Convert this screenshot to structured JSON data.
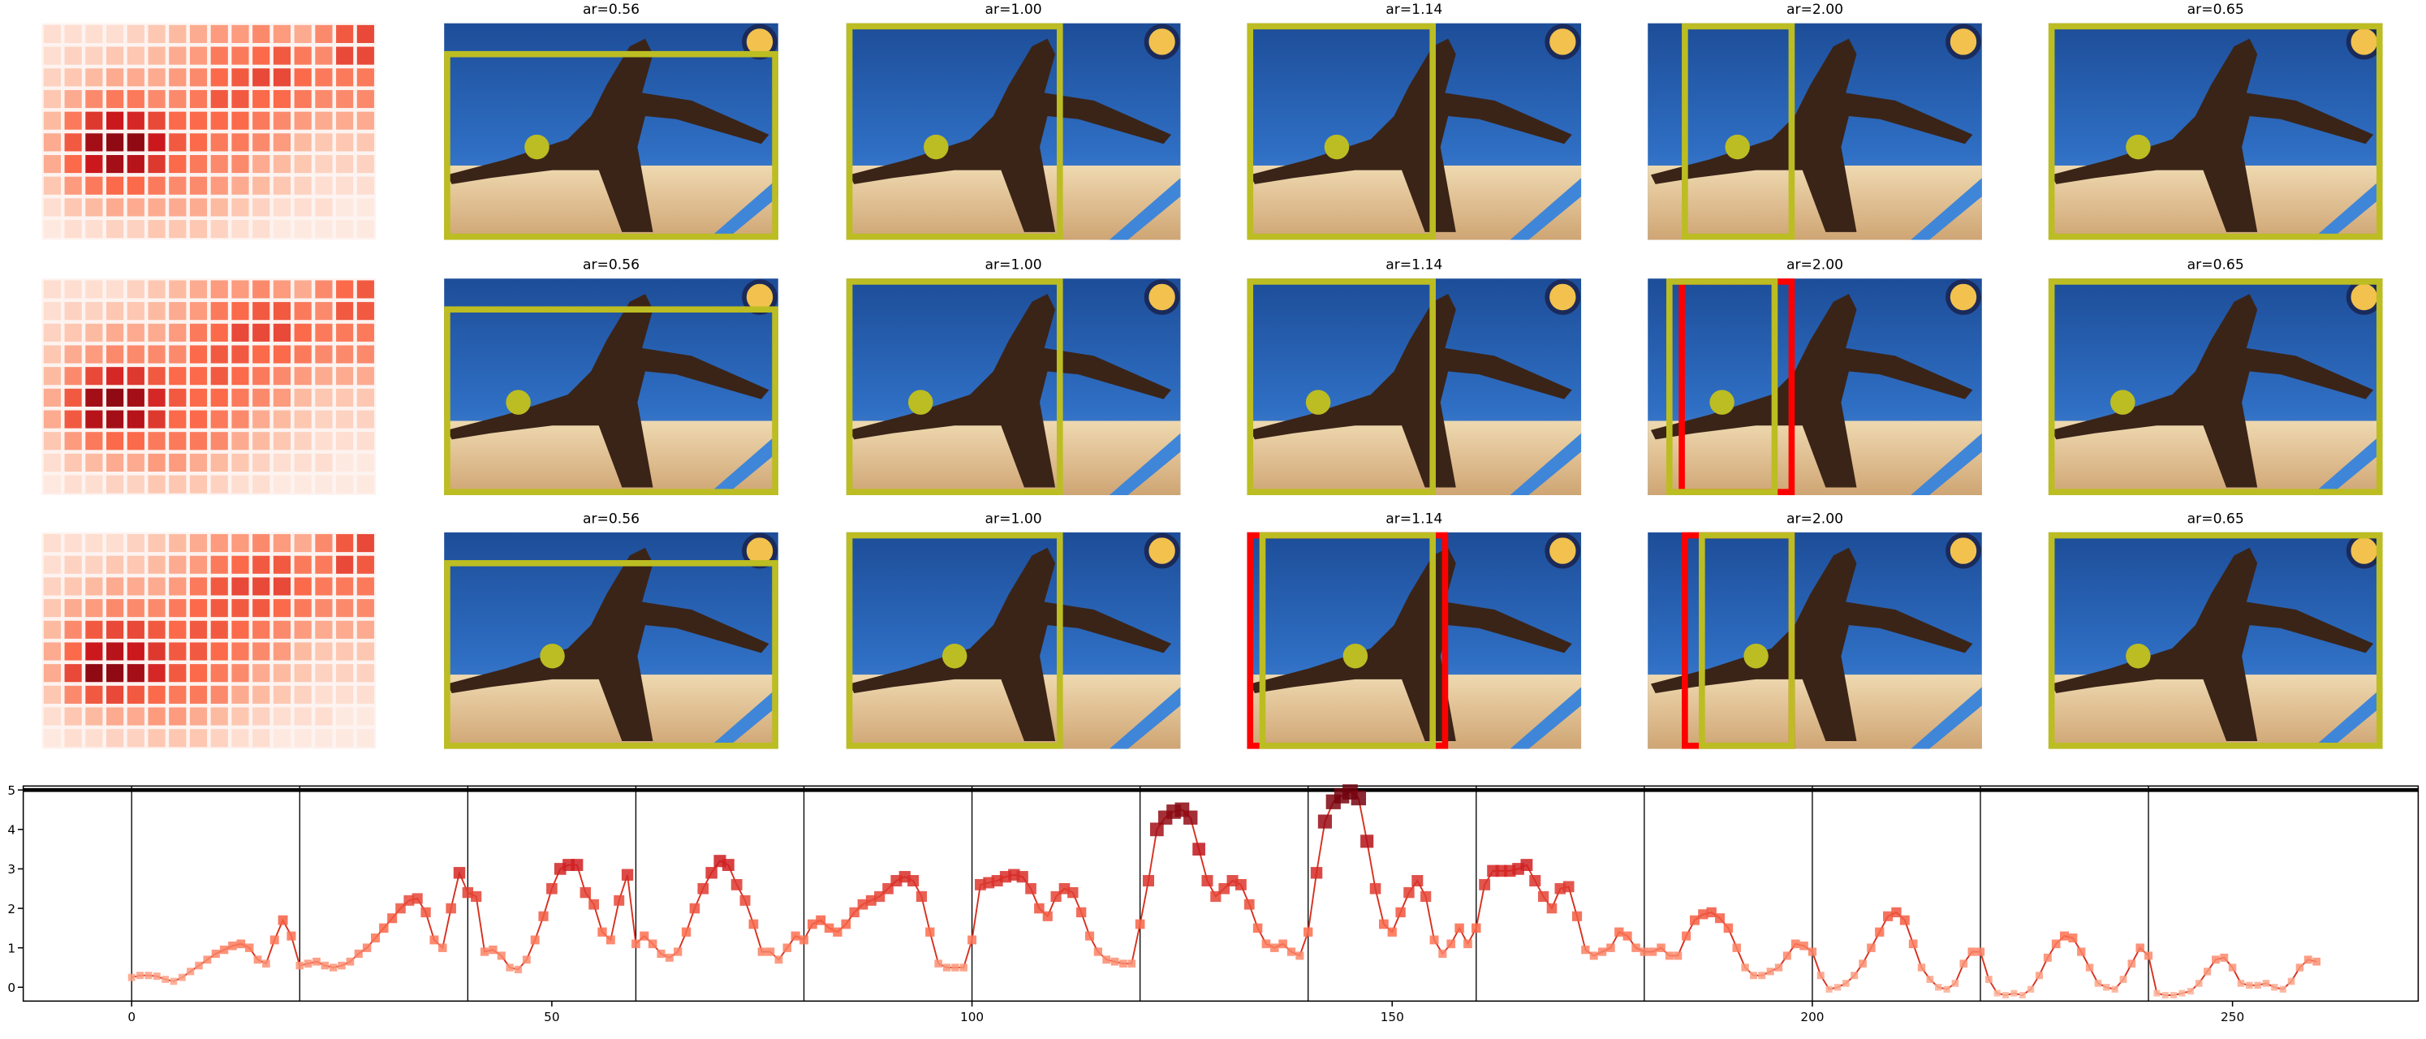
{
  "panel_titles": [
    [
      "ar=0.56",
      "ar=1.00",
      "ar=1.14",
      "ar=2.00",
      "ar=0.65"
    ],
    [
      "ar=0.56",
      "ar=1.00",
      "ar=1.14",
      "ar=2.00",
      "ar=0.65"
    ],
    [
      "ar=0.56",
      "ar=1.00",
      "ar=1.14",
      "ar=2.00",
      "ar=0.65"
    ]
  ],
  "heatmaps": [
    {
      "values": [
        [
          0.1,
          0.1,
          0.1,
          0.1,
          0.15,
          0.2,
          0.25,
          0.3,
          0.35,
          0.35,
          0.4,
          0.35,
          0.3,
          0.4,
          0.55,
          0.6
        ],
        [
          0.1,
          0.15,
          0.15,
          0.2,
          0.2,
          0.25,
          0.3,
          0.35,
          0.45,
          0.45,
          0.5,
          0.55,
          0.45,
          0.4,
          0.6,
          0.6
        ],
        [
          0.15,
          0.2,
          0.25,
          0.3,
          0.3,
          0.3,
          0.35,
          0.4,
          0.5,
          0.55,
          0.6,
          0.6,
          0.5,
          0.45,
          0.45,
          0.45
        ],
        [
          0.2,
          0.3,
          0.4,
          0.45,
          0.45,
          0.4,
          0.4,
          0.45,
          0.55,
          0.55,
          0.5,
          0.5,
          0.45,
          0.4,
          0.4,
          0.4
        ],
        [
          0.25,
          0.45,
          0.65,
          0.75,
          0.7,
          0.6,
          0.5,
          0.5,
          0.5,
          0.5,
          0.45,
          0.4,
          0.35,
          0.3,
          0.3,
          0.3
        ],
        [
          0.3,
          0.55,
          0.85,
          0.9,
          0.9,
          0.75,
          0.55,
          0.5,
          0.45,
          0.45,
          0.4,
          0.35,
          0.25,
          0.2,
          0.2,
          0.2
        ],
        [
          0.3,
          0.5,
          0.75,
          0.85,
          0.8,
          0.65,
          0.5,
          0.45,
          0.4,
          0.4,
          0.3,
          0.25,
          0.2,
          0.15,
          0.15,
          0.15
        ],
        [
          0.2,
          0.35,
          0.45,
          0.5,
          0.5,
          0.45,
          0.4,
          0.4,
          0.35,
          0.3,
          0.25,
          0.2,
          0.15,
          0.1,
          0.1,
          0.1
        ],
        [
          0.1,
          0.2,
          0.25,
          0.3,
          0.3,
          0.3,
          0.3,
          0.3,
          0.25,
          0.2,
          0.15,
          0.1,
          0.1,
          0.1,
          0.05,
          0.05
        ],
        [
          0.05,
          0.1,
          0.1,
          0.15,
          0.15,
          0.2,
          0.2,
          0.2,
          0.15,
          0.1,
          0.1,
          0.05,
          0.05,
          0.05,
          0.05,
          0.05
        ]
      ]
    },
    {
      "values": [
        [
          0.1,
          0.1,
          0.1,
          0.1,
          0.15,
          0.2,
          0.25,
          0.3,
          0.35,
          0.35,
          0.4,
          0.35,
          0.3,
          0.4,
          0.5,
          0.55
        ],
        [
          0.1,
          0.15,
          0.15,
          0.2,
          0.2,
          0.25,
          0.3,
          0.35,
          0.45,
          0.5,
          0.55,
          0.55,
          0.45,
          0.4,
          0.55,
          0.55
        ],
        [
          0.15,
          0.2,
          0.25,
          0.3,
          0.3,
          0.3,
          0.35,
          0.45,
          0.5,
          0.6,
          0.6,
          0.6,
          0.5,
          0.45,
          0.45,
          0.45
        ],
        [
          0.2,
          0.3,
          0.35,
          0.4,
          0.4,
          0.4,
          0.4,
          0.5,
          0.55,
          0.55,
          0.5,
          0.5,
          0.45,
          0.4,
          0.4,
          0.4
        ],
        [
          0.25,
          0.4,
          0.6,
          0.7,
          0.65,
          0.55,
          0.5,
          0.5,
          0.55,
          0.5,
          0.45,
          0.4,
          0.35,
          0.3,
          0.3,
          0.3
        ],
        [
          0.3,
          0.55,
          0.85,
          0.9,
          0.85,
          0.7,
          0.55,
          0.5,
          0.5,
          0.45,
          0.4,
          0.35,
          0.25,
          0.2,
          0.2,
          0.2
        ],
        [
          0.3,
          0.55,
          0.8,
          0.85,
          0.8,
          0.65,
          0.5,
          0.5,
          0.45,
          0.4,
          0.3,
          0.25,
          0.2,
          0.15,
          0.15,
          0.15
        ],
        [
          0.2,
          0.35,
          0.45,
          0.5,
          0.5,
          0.45,
          0.45,
          0.45,
          0.4,
          0.3,
          0.25,
          0.2,
          0.15,
          0.1,
          0.1,
          0.1
        ],
        [
          0.1,
          0.2,
          0.25,
          0.3,
          0.3,
          0.35,
          0.35,
          0.3,
          0.25,
          0.2,
          0.15,
          0.1,
          0.1,
          0.1,
          0.05,
          0.05
        ],
        [
          0.05,
          0.1,
          0.1,
          0.15,
          0.15,
          0.2,
          0.2,
          0.2,
          0.15,
          0.1,
          0.1,
          0.05,
          0.05,
          0.05,
          0.05,
          0.05
        ]
      ]
    },
    {
      "values": [
        [
          0.1,
          0.1,
          0.1,
          0.1,
          0.15,
          0.2,
          0.25,
          0.3,
          0.35,
          0.35,
          0.4,
          0.35,
          0.3,
          0.4,
          0.55,
          0.6
        ],
        [
          0.1,
          0.15,
          0.15,
          0.2,
          0.2,
          0.25,
          0.3,
          0.35,
          0.45,
          0.5,
          0.55,
          0.55,
          0.45,
          0.45,
          0.6,
          0.55
        ],
        [
          0.15,
          0.2,
          0.25,
          0.3,
          0.3,
          0.3,
          0.35,
          0.45,
          0.55,
          0.6,
          0.6,
          0.6,
          0.5,
          0.45,
          0.45,
          0.45
        ],
        [
          0.2,
          0.3,
          0.35,
          0.4,
          0.4,
          0.4,
          0.45,
          0.5,
          0.55,
          0.55,
          0.55,
          0.5,
          0.45,
          0.4,
          0.4,
          0.4
        ],
        [
          0.25,
          0.4,
          0.55,
          0.6,
          0.6,
          0.55,
          0.5,
          0.55,
          0.55,
          0.5,
          0.45,
          0.4,
          0.35,
          0.3,
          0.3,
          0.3
        ],
        [
          0.3,
          0.5,
          0.75,
          0.8,
          0.75,
          0.65,
          0.55,
          0.55,
          0.5,
          0.45,
          0.4,
          0.35,
          0.25,
          0.2,
          0.2,
          0.2
        ],
        [
          0.3,
          0.6,
          0.9,
          0.9,
          0.85,
          0.7,
          0.55,
          0.5,
          0.45,
          0.4,
          0.3,
          0.25,
          0.2,
          0.15,
          0.15,
          0.15
        ],
        [
          0.2,
          0.4,
          0.55,
          0.6,
          0.55,
          0.5,
          0.45,
          0.45,
          0.4,
          0.3,
          0.25,
          0.2,
          0.15,
          0.1,
          0.1,
          0.1
        ],
        [
          0.1,
          0.2,
          0.25,
          0.3,
          0.3,
          0.35,
          0.35,
          0.3,
          0.25,
          0.2,
          0.15,
          0.1,
          0.1,
          0.1,
          0.05,
          0.05
        ],
        [
          0.05,
          0.1,
          0.1,
          0.15,
          0.15,
          0.2,
          0.2,
          0.2,
          0.15,
          0.1,
          0.1,
          0.05,
          0.05,
          0.05,
          0.05,
          0.05
        ]
      ]
    }
  ],
  "chart_data": {
    "type": "line",
    "color": "#d7301f",
    "cmap": "Reds",
    "values": [
      0.25,
      0.3,
      0.3,
      0.28,
      0.2,
      0.15,
      0.25,
      0.4,
      0.55,
      0.7,
      0.85,
      0.95,
      1.05,
      1.1,
      1.0,
      0.7,
      0.6,
      1.2,
      1.7,
      1.3,
      0.55,
      0.6,
      0.65,
      0.55,
      0.5,
      0.55,
      0.65,
      0.85,
      1.0,
      1.25,
      1.5,
      1.75,
      2.0,
      2.2,
      2.25,
      1.9,
      1.2,
      1.0,
      2.0,
      2.9,
      2.4,
      2.3,
      0.9,
      0.95,
      0.8,
      0.5,
      0.45,
      0.7,
      1.2,
      1.8,
      2.5,
      3.0,
      3.1,
      3.1,
      2.4,
      2.1,
      1.4,
      1.2,
      2.2,
      2.85,
      1.1,
      1.3,
      1.1,
      0.85,
      0.75,
      0.9,
      1.4,
      2.0,
      2.5,
      2.9,
      3.2,
      3.1,
      2.6,
      2.2,
      1.6,
      0.9,
      0.9,
      0.7,
      1.0,
      1.3,
      1.2,
      1.6,
      1.7,
      1.5,
      1.4,
      1.6,
      1.9,
      2.1,
      2.2,
      2.3,
      2.5,
      2.7,
      2.8,
      2.7,
      2.3,
      1.4,
      0.6,
      0.5,
      0.5,
      0.5,
      1.2,
      2.6,
      2.65,
      2.7,
      2.8,
      2.85,
      2.8,
      2.5,
      2.0,
      1.8,
      2.3,
      2.5,
      2.4,
      1.9,
      1.3,
      0.9,
      0.7,
      0.65,
      0.6,
      0.6,
      1.6,
      2.7,
      4.0,
      4.3,
      4.45,
      4.5,
      4.3,
      3.5,
      2.7,
      2.3,
      2.5,
      2.7,
      2.6,
      2.1,
      1.5,
      1.1,
      1.0,
      1.1,
      0.9,
      0.8,
      1.4,
      2.9,
      4.2,
      4.7,
      4.85,
      4.95,
      4.8,
      3.7,
      2.5,
      1.6,
      1.4,
      1.9,
      2.4,
      2.7,
      2.3,
      1.2,
      0.85,
      1.1,
      1.5,
      1.1,
      1.5,
      2.6,
      2.95,
      2.95,
      2.95,
      3.0,
      3.1,
      2.7,
      2.3,
      2.0,
      2.5,
      2.55,
      1.8,
      0.95,
      0.8,
      0.9,
      1.0,
      1.4,
      1.3,
      1.0,
      0.9,
      0.9,
      1.0,
      0.8,
      0.8,
      1.3,
      1.7,
      1.85,
      1.9,
      1.75,
      1.5,
      1.0,
      0.5,
      0.3,
      0.3,
      0.4,
      0.5,
      0.8,
      1.1,
      1.05,
      0.9,
      0.3,
      -0.05,
      0.0,
      0.1,
      0.3,
      0.6,
      1.0,
      1.4,
      1.8,
      1.9,
      1.7,
      1.1,
      0.5,
      0.2,
      0.0,
      -0.05,
      0.1,
      0.6,
      0.9,
      0.9,
      0.2,
      -0.15,
      -0.2,
      -0.15,
      -0.2,
      -0.05,
      0.3,
      0.75,
      1.1,
      1.3,
      1.25,
      0.9,
      0.5,
      0.1,
      0.0,
      -0.05,
      0.2,
      0.6,
      1.0,
      0.8,
      -0.15,
      -0.2,
      -0.2,
      -0.15,
      -0.1,
      0.1,
      0.4,
      0.7,
      0.75,
      0.5,
      0.1,
      0.05,
      0.05,
      0.1,
      0.0,
      -0.05,
      0.15,
      0.5,
      0.7,
      0.65
    ],
    "xlim": [
      -12.9,
      272.1
    ],
    "ylim": [
      -0.35,
      5.1
    ],
    "xticks": [
      0,
      50,
      100,
      150,
      200,
      250
    ],
    "yticks": [
      0,
      1,
      2,
      3,
      4,
      5
    ],
    "vlines": [
      0,
      20,
      40,
      60,
      80,
      100,
      120,
      140,
      160,
      180,
      200,
      220,
      240
    ],
    "hline": 5
  }
}
